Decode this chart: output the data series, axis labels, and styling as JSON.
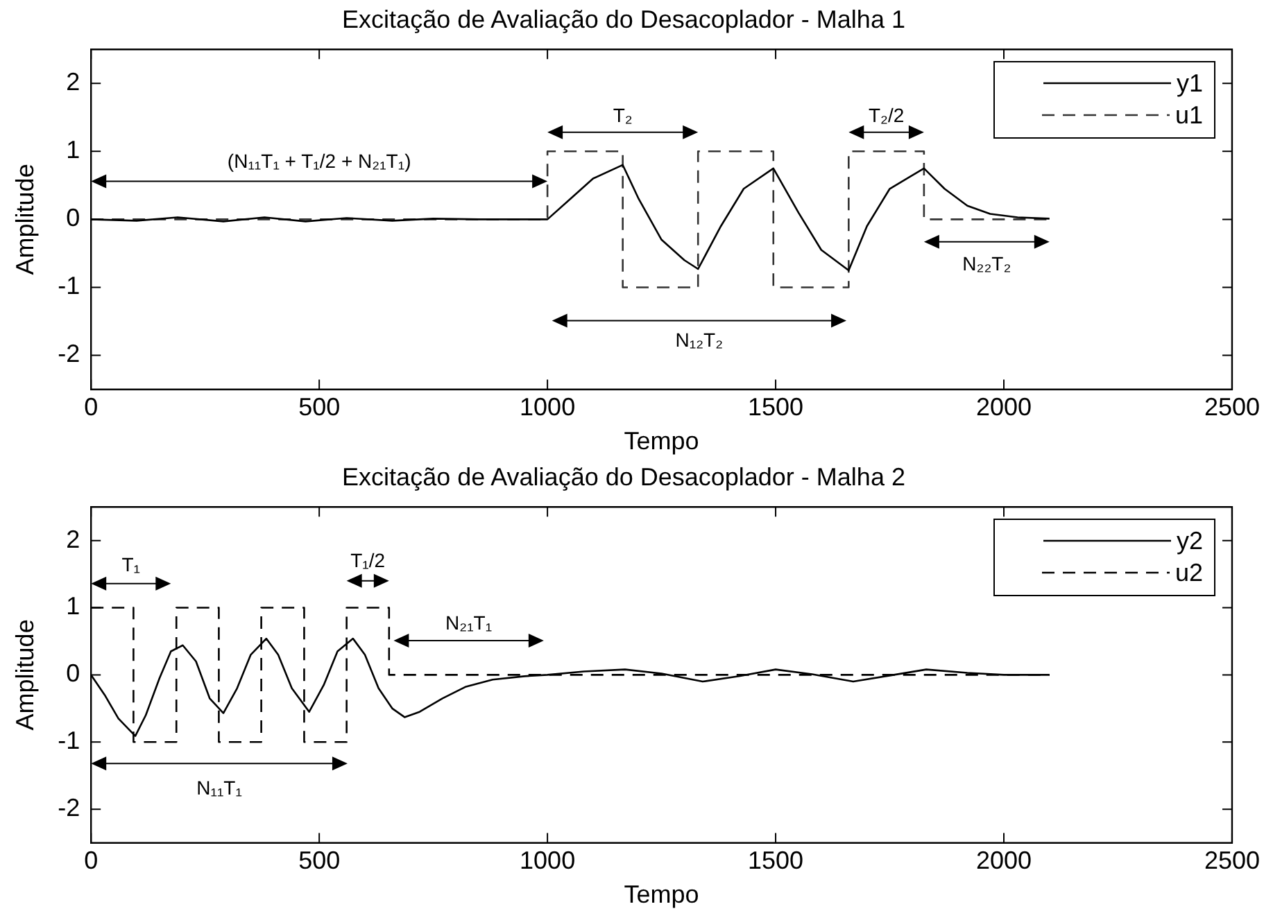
{
  "chart_data": [
    {
      "type": "line",
      "title": "Excitação de Avaliação do Desacoplador - Malha 1",
      "xlabel": "Tempo",
      "ylabel": "Amplitude",
      "xlim": [
        0,
        2500
      ],
      "xticks": [
        0,
        500,
        1000,
        1500,
        2000,
        2500
      ],
      "ylim": [
        -2.5,
        2.5
      ],
      "yticks": [
        -2,
        -1,
        0,
        1,
        2
      ],
      "legend": "top right",
      "marker": "none",
      "series": [
        {
          "name": "y1",
          "color": "#000000",
          "line_style": "solid",
          "x": [
            0,
            100,
            190,
            290,
            380,
            470,
            560,
            660,
            750,
            850,
            1000,
            1050,
            1100,
            1165,
            1200,
            1250,
            1300,
            1330,
            1380,
            1430,
            1495,
            1550,
            1600,
            1660,
            1700,
            1750,
            1825,
            1870,
            1920,
            1970,
            2030,
            2100
          ],
          "values": [
            0,
            -0.02,
            0.03,
            -0.03,
            0.03,
            -0.03,
            0.02,
            -0.02,
            0.01,
            0,
            0,
            0.3,
            0.6,
            0.8,
            0.3,
            -0.3,
            -0.6,
            -0.73,
            -0.1,
            0.45,
            0.75,
            0.1,
            -0.45,
            -0.75,
            -0.1,
            0.45,
            0.75,
            0.45,
            0.2,
            0.08,
            0.03,
            0.01
          ]
        },
        {
          "name": "u1",
          "color": "#333333",
          "line_style": "dashed",
          "x": [
            0,
            1000,
            1000,
            1165,
            1165,
            1330,
            1330,
            1495,
            1495,
            1660,
            1660,
            1825,
            1825,
            2100
          ],
          "values": [
            0,
            0,
            1,
            1,
            -1,
            -1,
            1,
            1,
            -1,
            -1,
            1,
            1,
            0,
            0
          ]
        }
      ],
      "annotations": [
        "(N₁₁T₁ + T₁/2 + N₂₁T₁)",
        "T₂",
        "T₂/2",
        "N₂₂T₂",
        "N₁₂T₂"
      ]
    },
    {
      "type": "line",
      "title": "Excitação de Avaliação do Desacoplador - Malha 2",
      "xlabel": "Tempo",
      "ylabel": "Amplitude",
      "xlim": [
        0,
        2500
      ],
      "xticks": [
        0,
        500,
        1000,
        1500,
        2000,
        2500
      ],
      "ylim": [
        -2.5,
        2.5
      ],
      "yticks": [
        -2,
        -1,
        0,
        1,
        2
      ],
      "legend": "top right",
      "marker": "none",
      "series": [
        {
          "name": "y2",
          "color": "#000000",
          "line_style": "solid",
          "x": [
            0,
            30,
            60,
            97,
            120,
            150,
            175,
            201,
            230,
            260,
            290,
            320,
            350,
            384,
            410,
            440,
            478,
            510,
            540,
            574,
            600,
            630,
            660,
            687,
            720,
            770,
            820,
            880,
            950,
            1000,
            1080,
            1170,
            1250,
            1340,
            1420,
            1500,
            1580,
            1670,
            1750,
            1830,
            1920,
            2000,
            2100
          ],
          "values": [
            0,
            -0.3,
            -0.65,
            -0.91,
            -0.6,
            -0.05,
            0.35,
            0.44,
            0.2,
            -0.35,
            -0.57,
            -0.2,
            0.3,
            0.54,
            0.3,
            -0.2,
            -0.55,
            -0.15,
            0.35,
            0.54,
            0.3,
            -0.2,
            -0.5,
            -0.63,
            -0.55,
            -0.35,
            -0.18,
            -0.07,
            -0.02,
            0,
            0.05,
            0.08,
            0.02,
            -0.1,
            -0.02,
            0.08,
            0.01,
            -0.1,
            -0.01,
            0.08,
            0.03,
            0,
            0
          ]
        },
        {
          "name": "u2",
          "color": "#000000",
          "line_style": "dashed",
          "x": [
            0,
            93,
            93,
            187,
            187,
            280,
            280,
            373,
            373,
            467,
            467,
            560,
            560,
            653,
            653,
            2100
          ],
          "values": [
            1,
            1,
            -1,
            -1,
            1,
            1,
            -1,
            -1,
            1,
            1,
            -1,
            -1,
            1,
            1,
            0,
            0
          ]
        }
      ],
      "annotations": [
        "T₁",
        "T₁/2",
        "N₂₁T₁",
        "N₁₁T₁"
      ]
    }
  ]
}
